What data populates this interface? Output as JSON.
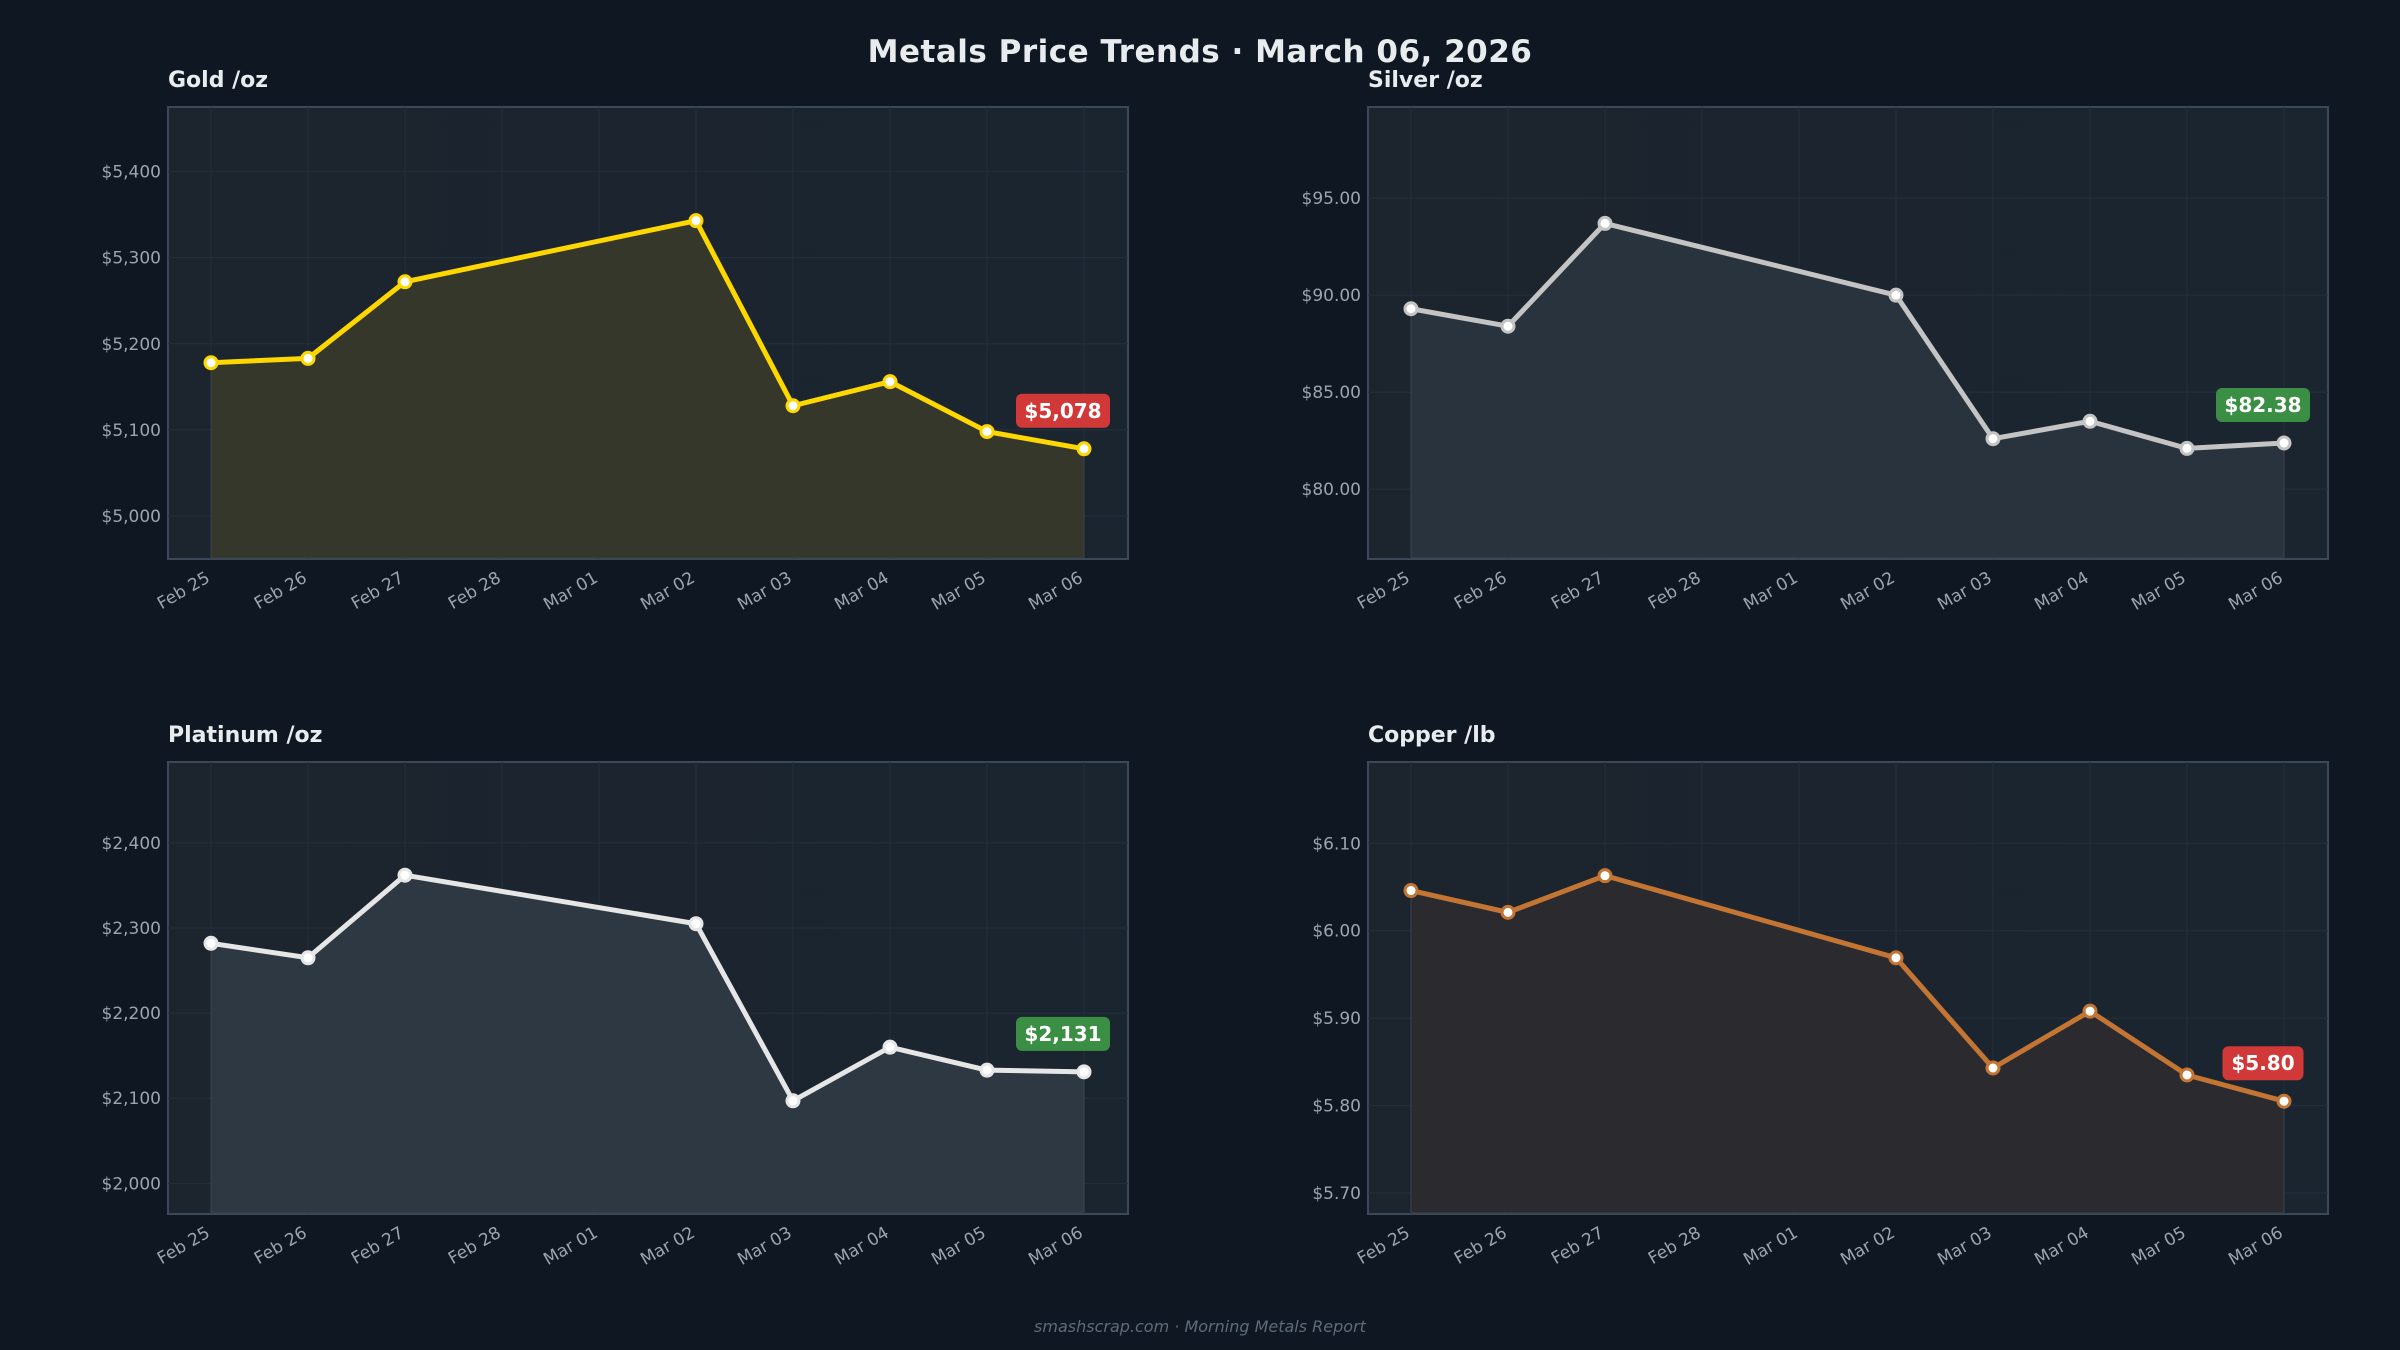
{
  "title": "Metals Price Trends  ·  March 06, 2026",
  "footer": "smashscrap.com  ·  Morning Metals Report",
  "chart_data": [
    {
      "type": "area",
      "title": "Gold  /oz",
      "color": "#FFD700",
      "fill": "#343729",
      "x_ticks": [
        "Feb 25",
        "Feb 26",
        "Feb 27",
        "Feb 28",
        "Mar 01",
        "Mar 02",
        "Mar 03",
        "Mar 04",
        "Mar 05",
        "Mar 06"
      ],
      "x": [
        "Feb 25",
        "Feb 26",
        "Feb 27",
        "Mar 02",
        "Mar 03",
        "Mar 04",
        "Mar 05",
        "Mar 06"
      ],
      "values": [
        5178,
        5183,
        5272,
        5343,
        5128,
        5156,
        5098,
        5078
      ],
      "ylim": [
        4950,
        5475
      ],
      "y_ticks": [
        5000,
        5100,
        5200,
        5300,
        5400
      ],
      "y_tick_labels": [
        "$5,000",
        "$5,100",
        "$5,200",
        "$5,300",
        "$5,400"
      ],
      "last_label": "$5,078",
      "last_label_color": "#d13838",
      "grid": true
    },
    {
      "type": "area",
      "title": "Silver  /oz",
      "color": "#C4C4C4",
      "fill": "#29333d",
      "x_ticks": [
        "Feb 25",
        "Feb 26",
        "Feb 27",
        "Feb 28",
        "Mar 01",
        "Mar 02",
        "Mar 03",
        "Mar 04",
        "Mar 05",
        "Mar 06"
      ],
      "x": [
        "Feb 25",
        "Feb 26",
        "Feb 27",
        "Mar 02",
        "Mar 03",
        "Mar 04",
        "Mar 05",
        "Mar 06"
      ],
      "values": [
        89.3,
        88.4,
        93.7,
        90.0,
        82.6,
        83.5,
        82.1,
        82.38
      ],
      "ylim": [
        76.4,
        99.7
      ],
      "y_ticks": [
        80,
        85,
        90,
        95
      ],
      "y_tick_labels": [
        "$80.00",
        "$85.00",
        "$90.00",
        "$95.00"
      ],
      "last_label": "$82.38",
      "last_label_color": "#3a8f44",
      "grid": true
    },
    {
      "type": "area",
      "title": "Platinum  /oz",
      "color": "#E6E6E6",
      "fill": "#2d3842",
      "x_ticks": [
        "Feb 25",
        "Feb 26",
        "Feb 27",
        "Feb 28",
        "Mar 01",
        "Mar 02",
        "Mar 03",
        "Mar 04",
        "Mar 05",
        "Mar 06"
      ],
      "x": [
        "Feb 25",
        "Feb 26",
        "Feb 27",
        "Mar 02",
        "Mar 03",
        "Mar 04",
        "Mar 05",
        "Mar 06"
      ],
      "values": [
        2282,
        2265,
        2362,
        2305,
        2097,
        2160,
        2133,
        2131
      ],
      "ylim": [
        1964,
        2495
      ],
      "y_ticks": [
        2000,
        2100,
        2200,
        2300,
        2400
      ],
      "y_tick_labels": [
        "$2,000",
        "$2,100",
        "$2,200",
        "$2,300",
        "$2,400"
      ],
      "last_label": "$2,131",
      "last_label_color": "#3a8f44",
      "grid": true
    },
    {
      "type": "area",
      "title": "Copper  /lb",
      "color": "#C47533",
      "fill": "#2b2b2f",
      "x_ticks": [
        "Feb 25",
        "Feb 26",
        "Feb 27",
        "Feb 28",
        "Mar 01",
        "Mar 02",
        "Mar 03",
        "Mar 04",
        "Mar 05",
        "Mar 06"
      ],
      "x": [
        "Feb 25",
        "Feb 26",
        "Feb 27",
        "Mar 02",
        "Mar 03",
        "Mar 04",
        "Mar 05",
        "Mar 06"
      ],
      "values": [
        6.046,
        6.021,
        6.063,
        5.969,
        5.843,
        5.908,
        5.835,
        5.805
      ],
      "ylim": [
        5.676,
        6.193
      ],
      "y_ticks": [
        5.7,
        5.8,
        5.9,
        6.0,
        6.1
      ],
      "y_tick_labels": [
        "$5.70",
        "$5.80",
        "$5.90",
        "$6.00",
        "$6.10"
      ],
      "last_label": "$5.80",
      "last_label_color": "#d13838",
      "grid": true
    }
  ]
}
